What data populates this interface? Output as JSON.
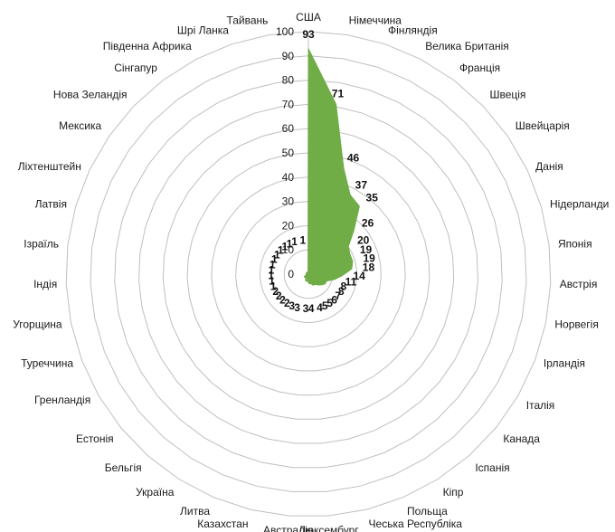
{
  "chart_data": {
    "type": "radar",
    "title": "",
    "series_color": "#70ad47",
    "grid_color": "#bfbfbf",
    "grid": true,
    "legend": "none",
    "rlim": [
      0,
      100
    ],
    "ticks": [
      "0",
      "10",
      "20",
      "30",
      "40",
      "50",
      "60",
      "70",
      "80",
      "90",
      "100"
    ],
    "categories": [
      "США",
      "Німеччина",
      "Фінляндія",
      "Велика Британія",
      "Франція",
      "Швеція",
      "Швейцарія",
      "Данія",
      "Нідерланди",
      "Японія",
      "Австрія",
      "Норвегія",
      "Ірландія",
      "Італія",
      "Канада",
      "Іспанія",
      "Кіпр",
      "Польща",
      "Чеська Республіка",
      "Люксембург",
      "Австралія",
      "Казахстан",
      "Литва",
      "Україна",
      "Бельгія",
      "Естонія",
      "Гренландія",
      "Туреччина",
      "Угорщина",
      "Індія",
      "Ізраїль",
      "Латвія",
      "Ліхтенштейн",
      "Мексика",
      "Нова Зеландія",
      "Сінгапур",
      "Південна Африка",
      "Шрі Ланка",
      "Тайвань"
    ],
    "values": [
      93,
      71,
      46,
      37,
      35,
      26,
      20,
      19,
      19,
      18,
      14,
      11,
      8,
      8,
      7,
      6,
      5,
      5,
      4,
      4,
      3,
      3,
      3,
      2,
      2,
      2,
      2,
      1,
      1,
      1,
      1,
      1,
      1,
      1,
      1,
      1,
      1,
      1,
      1
    ],
    "value_labels": [
      "93",
      "71",
      "46",
      "37",
      "35",
      "26",
      "20",
      "19",
      "19",
      "18",
      "14",
      "11",
      "8",
      "8",
      "7",
      "6",
      "5",
      "5",
      "4",
      "4",
      "3",
      "3",
      "3",
      "2",
      "2",
      "2",
      "2",
      "1",
      "1",
      "1",
      "1",
      "1",
      "1",
      "1",
      "1",
      "1",
      "1",
      "1",
      "1"
    ]
  }
}
